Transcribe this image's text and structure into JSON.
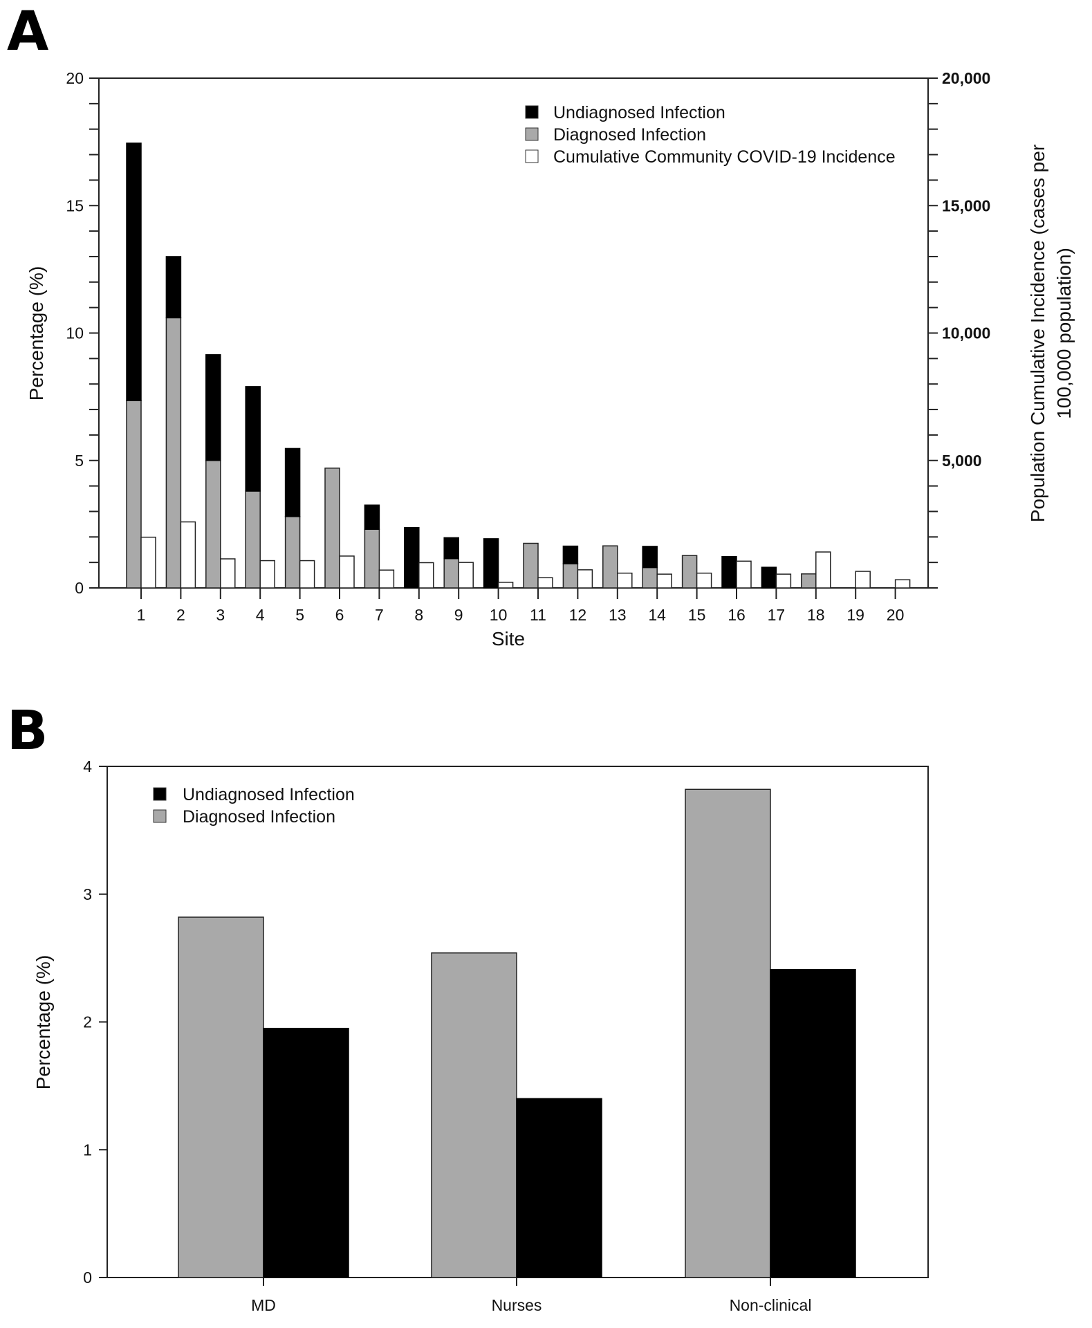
{
  "panels": {
    "a_label": "A",
    "b_label": "B"
  },
  "chart_data": [
    {
      "type": "bar",
      "subtype": "stacked+grouped, dual axis",
      "panel": "A",
      "title": "",
      "xlabel": "Site",
      "ylabel": "Percentage (%)",
      "ylabel_right": "Population Cumulative Incidence (cases per 100,000 population)",
      "ylabel_right_lines": [
        "Population Cumulative Incidence (cases per",
        "100,000 population)"
      ],
      "categories": [
        "1",
        "2",
        "3",
        "4",
        "5",
        "6",
        "7",
        "8",
        "9",
        "10",
        "11",
        "12",
        "13",
        "14",
        "15",
        "16",
        "17",
        "18",
        "19",
        "20"
      ],
      "ylim": [
        0,
        20
      ],
      "yticks": [
        "0",
        "5",
        "10",
        "15",
        "20"
      ],
      "ylim_right": [
        0,
        20000
      ],
      "yticks_right": [
        "5,000",
        "10,000",
        "15,000",
        "20,000"
      ],
      "legend_position": "top-right",
      "grid": false,
      "series": [
        {
          "name": "Diagnosed Infection",
          "axis": "left",
          "stack": "site",
          "color": "#a9a9a9",
          "values": [
            7.35,
            10.6,
            5.0,
            3.8,
            2.8,
            4.7,
            2.3,
            0,
            1.15,
            0,
            1.75,
            0.95,
            1.65,
            0.8,
            1.27,
            0,
            0,
            0.55,
            0,
            0
          ]
        },
        {
          "name": "Undiagnosed Infection",
          "axis": "left",
          "stack": "site",
          "color": "#000000",
          "values": [
            10.1,
            2.4,
            4.15,
            4.1,
            2.67,
            0,
            0.95,
            2.37,
            0.82,
            1.93,
            0,
            0.69,
            0,
            0.83,
            0,
            1.23,
            0.81,
            0,
            0,
            0
          ]
        },
        {
          "name": "Cumulative Community COVID-19 Incidence",
          "axis": "right",
          "color": "#ffffff",
          "values": [
            1990,
            2590,
            1140,
            1070,
            1070,
            1250,
            700,
            990,
            1000,
            220,
            400,
            710,
            580,
            540,
            580,
            1050,
            540,
            1410,
            650,
            320
          ]
        }
      ],
      "legend": [
        "Undiagnosed Infection",
        "Diagnosed Infection",
        "Cumulative Community COVID-19 Incidence"
      ]
    },
    {
      "type": "bar",
      "subtype": "grouped",
      "panel": "B",
      "title": "",
      "xlabel": "",
      "ylabel": "Percentage (%)",
      "categories": [
        "MD",
        "Nurses",
        "Non-clinical"
      ],
      "ylim": [
        0,
        4
      ],
      "yticks": [
        "0",
        "1",
        "2",
        "3",
        "4"
      ],
      "legend_position": "top-left",
      "grid": false,
      "series": [
        {
          "name": "Diagnosed Infection",
          "color": "#a9a9a9",
          "values": [
            2.82,
            2.54,
            3.82
          ]
        },
        {
          "name": "Undiagnosed Infection",
          "color": "#000000",
          "values": [
            1.95,
            1.4,
            2.41
          ]
        }
      ],
      "legend": [
        "Undiagnosed Infection",
        "Diagnosed Infection"
      ]
    }
  ]
}
